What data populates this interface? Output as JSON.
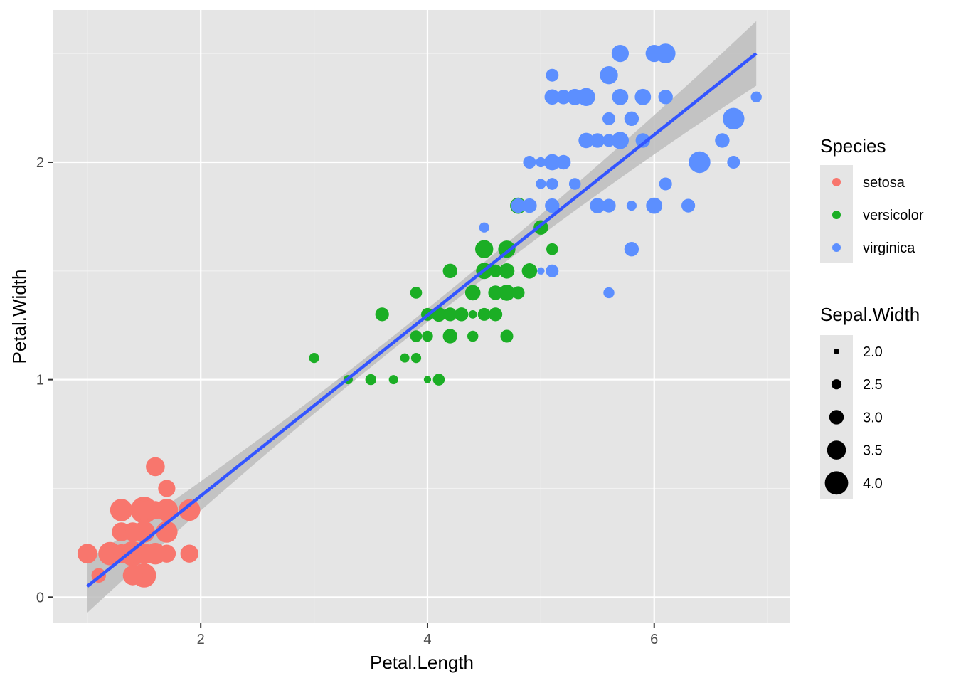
{
  "chart_data": {
    "type": "scatter",
    "xlabel": "Petal.Length",
    "ylabel": "Petal.Width",
    "xlim": [
      0.7,
      7.2
    ],
    "ylim": [
      -0.12,
      2.7
    ],
    "x_ticks": [
      2,
      4,
      6
    ],
    "y_ticks": [
      0,
      1,
      2
    ],
    "grid": true,
    "legend_position": "right",
    "trend_line": {
      "method": "linear",
      "from": [
        1.0,
        0.05
      ],
      "to": [
        6.9,
        2.5
      ],
      "confidence_band": true
    },
    "colors": {
      "setosa": "#F8766D",
      "versicolor": "#1BAE25",
      "virginica": "#5C8FFF",
      "trend": "#3355FF",
      "band": "#BDBDBD",
      "panel": "#E5E5E5"
    },
    "legends": {
      "color": {
        "title": "Species",
        "labels": [
          "setosa",
          "versicolor",
          "virginica"
        ]
      },
      "size": {
        "title": "Sepal.Width",
        "labels": [
          "2.0",
          "2.5",
          "3.0",
          "3.5",
          "4.0"
        ],
        "values": [
          2.0,
          2.5,
          3.0,
          3.5,
          4.0
        ]
      }
    },
    "series": [
      {
        "name": "setosa",
        "points": [
          [
            1.4,
            0.2,
            3.5
          ],
          [
            1.4,
            0.2,
            3.0
          ],
          [
            1.3,
            0.2,
            3.2
          ],
          [
            1.5,
            0.2,
            3.1
          ],
          [
            1.4,
            0.2,
            3.6
          ],
          [
            1.7,
            0.4,
            3.9
          ],
          [
            1.4,
            0.3,
            3.4
          ],
          [
            1.5,
            0.2,
            3.4
          ],
          [
            1.4,
            0.2,
            2.9
          ],
          [
            1.5,
            0.1,
            3.1
          ],
          [
            1.5,
            0.2,
            3.7
          ],
          [
            1.6,
            0.2,
            3.4
          ],
          [
            1.4,
            0.1,
            3.0
          ],
          [
            1.1,
            0.1,
            3.0
          ],
          [
            1.2,
            0.2,
            4.0
          ],
          [
            1.5,
            0.4,
            4.4
          ],
          [
            1.3,
            0.4,
            3.9
          ],
          [
            1.4,
            0.3,
            3.5
          ],
          [
            1.7,
            0.3,
            3.8
          ],
          [
            1.5,
            0.3,
            3.8
          ],
          [
            1.7,
            0.2,
            3.4
          ],
          [
            1.5,
            0.4,
            3.7
          ],
          [
            1.0,
            0.2,
            3.6
          ],
          [
            1.7,
            0.5,
            3.3
          ],
          [
            1.9,
            0.2,
            3.4
          ],
          [
            1.6,
            0.2,
            3.0
          ],
          [
            1.6,
            0.4,
            3.4
          ],
          [
            1.5,
            0.2,
            3.5
          ],
          [
            1.4,
            0.2,
            3.4
          ],
          [
            1.6,
            0.2,
            3.2
          ],
          [
            1.6,
            0.2,
            3.1
          ],
          [
            1.5,
            0.4,
            3.4
          ],
          [
            1.5,
            0.1,
            4.1
          ],
          [
            1.4,
            0.2,
            4.2
          ],
          [
            1.5,
            0.2,
            3.1
          ],
          [
            1.2,
            0.2,
            3.2
          ],
          [
            1.3,
            0.2,
            3.5
          ],
          [
            1.4,
            0.1,
            3.6
          ],
          [
            1.3,
            0.2,
            3.0
          ],
          [
            1.5,
            0.2,
            3.4
          ],
          [
            1.3,
            0.3,
            3.5
          ],
          [
            1.3,
            0.3,
            2.3
          ],
          [
            1.3,
            0.2,
            3.2
          ],
          [
            1.6,
            0.6,
            3.5
          ],
          [
            1.9,
            0.4,
            3.8
          ],
          [
            1.4,
            0.3,
            3.0
          ],
          [
            1.6,
            0.2,
            3.8
          ],
          [
            1.4,
            0.2,
            3.2
          ],
          [
            1.5,
            0.2,
            3.7
          ],
          [
            1.4,
            0.2,
            3.3
          ]
        ]
      },
      {
        "name": "versicolor",
        "points": [
          [
            4.7,
            1.4,
            3.2
          ],
          [
            4.5,
            1.5,
            3.2
          ],
          [
            4.9,
            1.5,
            3.1
          ],
          [
            4.0,
            1.3,
            2.3
          ],
          [
            4.6,
            1.5,
            2.8
          ],
          [
            4.5,
            1.3,
            2.8
          ],
          [
            4.7,
            1.6,
            3.3
          ],
          [
            3.3,
            1.0,
            2.4
          ],
          [
            4.6,
            1.3,
            2.9
          ],
          [
            3.9,
            1.4,
            2.7
          ],
          [
            3.5,
            1.0,
            2.0
          ],
          [
            4.2,
            1.5,
            3.0
          ],
          [
            4.0,
            1.0,
            2.2
          ],
          [
            4.7,
            1.4,
            2.9
          ],
          [
            3.6,
            1.3,
            2.9
          ],
          [
            4.4,
            1.4,
            3.1
          ],
          [
            4.5,
            1.5,
            3.0
          ],
          [
            4.1,
            1.0,
            2.7
          ],
          [
            4.5,
            1.5,
            2.2
          ],
          [
            3.9,
            1.1,
            2.5
          ],
          [
            4.8,
            1.8,
            3.2
          ],
          [
            4.0,
            1.3,
            2.8
          ],
          [
            4.9,
            1.5,
            2.5
          ],
          [
            4.7,
            1.2,
            2.8
          ],
          [
            4.3,
            1.3,
            2.9
          ],
          [
            4.4,
            1.4,
            3.0
          ],
          [
            4.8,
            1.4,
            2.8
          ],
          [
            5.0,
            1.7,
            3.0
          ],
          [
            4.5,
            1.5,
            2.9
          ],
          [
            3.5,
            1.0,
            2.6
          ],
          [
            3.8,
            1.1,
            2.4
          ],
          [
            3.7,
            1.0,
            2.4
          ],
          [
            3.9,
            1.2,
            2.7
          ],
          [
            5.1,
            1.6,
            2.7
          ],
          [
            4.5,
            1.5,
            3.0
          ],
          [
            4.5,
            1.6,
            3.4
          ],
          [
            4.7,
            1.5,
            3.1
          ],
          [
            4.4,
            1.3,
            2.3
          ],
          [
            4.1,
            1.3,
            3.0
          ],
          [
            4.0,
            1.3,
            2.5
          ],
          [
            4.4,
            1.2,
            2.6
          ],
          [
            4.6,
            1.4,
            3.0
          ],
          [
            4.0,
            1.2,
            2.6
          ],
          [
            3.3,
            1.0,
            2.3
          ],
          [
            4.2,
            1.3,
            2.7
          ],
          [
            4.2,
            1.2,
            3.0
          ],
          [
            4.2,
            1.3,
            2.9
          ],
          [
            4.3,
            1.3,
            2.9
          ],
          [
            3.0,
            1.1,
            2.5
          ],
          [
            4.1,
            1.3,
            2.8
          ]
        ]
      },
      {
        "name": "virginica",
        "points": [
          [
            6.0,
            2.5,
            3.3
          ],
          [
            5.1,
            1.9,
            2.7
          ],
          [
            5.9,
            2.1,
            3.0
          ],
          [
            5.6,
            1.8,
            2.9
          ],
          [
            5.8,
            2.2,
            3.0
          ],
          [
            6.6,
            2.1,
            3.0
          ],
          [
            4.5,
            1.7,
            2.5
          ],
          [
            6.3,
            1.8,
            2.9
          ],
          [
            5.8,
            1.8,
            2.5
          ],
          [
            6.1,
            2.5,
            3.6
          ],
          [
            5.1,
            2.0,
            3.2
          ],
          [
            5.3,
            1.9,
            2.7
          ],
          [
            5.5,
            2.1,
            3.0
          ],
          [
            5.0,
            2.0,
            2.5
          ],
          [
            5.1,
            2.4,
            2.8
          ],
          [
            5.3,
            2.3,
            3.2
          ],
          [
            5.5,
            1.8,
            3.0
          ],
          [
            6.7,
            2.2,
            3.8
          ],
          [
            6.9,
            2.3,
            2.6
          ],
          [
            5.0,
            1.5,
            2.2
          ],
          [
            5.7,
            2.3,
            3.2
          ],
          [
            4.9,
            2.0,
            2.8
          ],
          [
            6.7,
            2.0,
            2.8
          ],
          [
            4.9,
            1.8,
            2.7
          ],
          [
            5.7,
            2.1,
            3.3
          ],
          [
            6.0,
            1.8,
            3.2
          ],
          [
            4.8,
            1.8,
            2.8
          ],
          [
            4.9,
            1.8,
            3.0
          ],
          [
            5.6,
            2.1,
            2.8
          ],
          [
            5.8,
            1.6,
            3.0
          ],
          [
            6.1,
            1.9,
            2.8
          ],
          [
            6.4,
            2.0,
            3.8
          ],
          [
            5.6,
            2.2,
            2.8
          ],
          [
            5.1,
            1.5,
            2.8
          ],
          [
            5.6,
            1.4,
            2.6
          ],
          [
            6.1,
            2.3,
            3.0
          ],
          [
            5.6,
            2.4,
            3.4
          ],
          [
            5.5,
            1.8,
            3.1
          ],
          [
            4.8,
            1.8,
            3.0
          ],
          [
            5.4,
            2.1,
            3.1
          ],
          [
            5.6,
            2.4,
            3.1
          ],
          [
            5.1,
            2.3,
            3.1
          ],
          [
            5.1,
            1.9,
            2.7
          ],
          [
            5.9,
            2.3,
            3.2
          ],
          [
            5.7,
            2.5,
            3.3
          ],
          [
            5.2,
            2.3,
            3.0
          ],
          [
            5.0,
            1.9,
            2.5
          ],
          [
            5.2,
            2.0,
            3.0
          ],
          [
            5.4,
            2.3,
            3.4
          ],
          [
            5.1,
            1.8,
            3.0
          ]
        ]
      }
    ]
  }
}
